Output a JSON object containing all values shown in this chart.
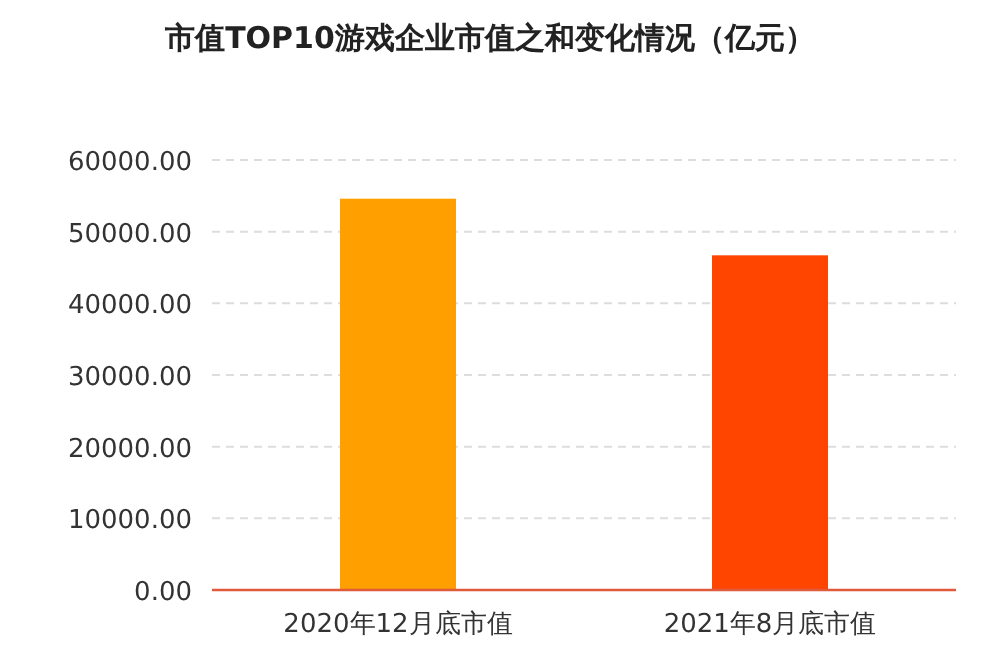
{
  "chart_data": {
    "type": "bar",
    "title": "市值TOP10游戏企业市值之和变化情况（亿元）",
    "categories": [
      "2020年12月底市值",
      "2021年8月底市值"
    ],
    "values": [
      54600,
      46700
    ],
    "colors": [
      "#ff9f00",
      "#ff4500"
    ],
    "ylim": [
      0,
      60000
    ],
    "yticks": [
      {
        "value": 0,
        "label": "0.00"
      },
      {
        "value": 10000,
        "label": "10000.00"
      },
      {
        "value": 20000,
        "label": "20000.00"
      },
      {
        "value": 30000,
        "label": "30000.00"
      },
      {
        "value": 40000,
        "label": "40000.00"
      },
      {
        "value": 50000,
        "label": "50000.00"
      },
      {
        "value": 60000,
        "label": "60000.00"
      }
    ],
    "grid": "y"
  }
}
